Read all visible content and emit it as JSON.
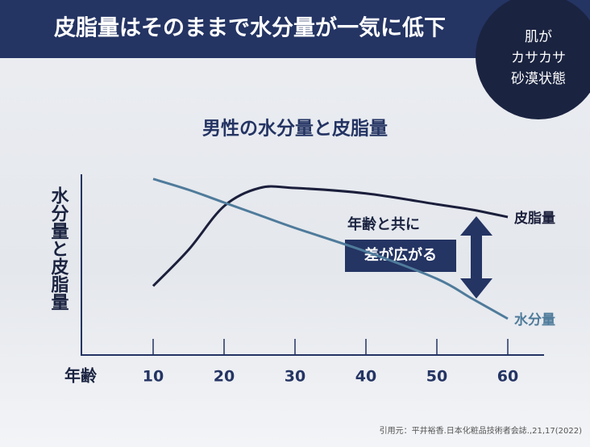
{
  "header": {
    "title": "皮脂量はそのままで水分量が一気に低下"
  },
  "badge": {
    "lines": [
      "肌が",
      "カサカサ",
      "砂漠状態"
    ]
  },
  "chart_data": {
    "type": "line",
    "title": "男性の水分量と皮脂量",
    "y_label": "水分量と皮脂量",
    "x_label": "年齢",
    "x": [
      10,
      15,
      20,
      25,
      30,
      40,
      50,
      55,
      60
    ],
    "series": [
      {
        "name": "皮脂量",
        "color": "#1b1f3b",
        "values": [
          38,
          58,
          82,
          92,
          92,
          89,
          83,
          80,
          76
        ]
      },
      {
        "name": "水分量",
        "color": "#4f7b9b",
        "values": [
          97,
          91,
          84,
          77,
          70,
          57,
          42,
          31,
          20
        ]
      }
    ],
    "xlim": [
      0,
      65
    ],
    "xticks": [
      10,
      20,
      30,
      40,
      50,
      60
    ],
    "ylim": [
      0,
      100
    ],
    "annotation": {
      "line1": "年齢と共に",
      "line2": "差が広がる"
    }
  },
  "citation": "引用元：平井裕香.日本化粧品技術者会誌.,21,17(2022)"
}
